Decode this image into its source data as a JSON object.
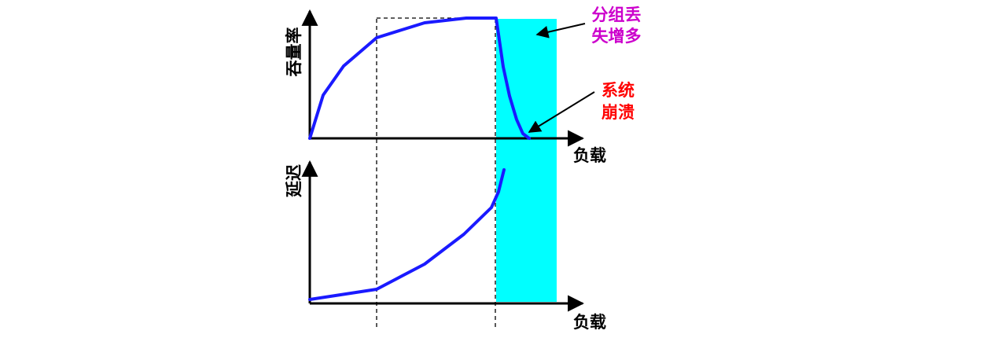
{
  "top_chart": {
    "ylabel": "吞量率",
    "xlabel": "负载"
  },
  "bottom_chart": {
    "ylabel": "延迟",
    "xlabel": "负载"
  },
  "annotations": {
    "packet_loss": [
      "分组丢",
      "失增多"
    ],
    "collapse": [
      "系统",
      "崩溃"
    ]
  },
  "colors": {
    "curve": "#1a1aff",
    "congestion_region": "#00ffff",
    "packet_loss_text": "#cc00cc",
    "collapse_text": "#ff0000",
    "axis": "#000000"
  }
}
